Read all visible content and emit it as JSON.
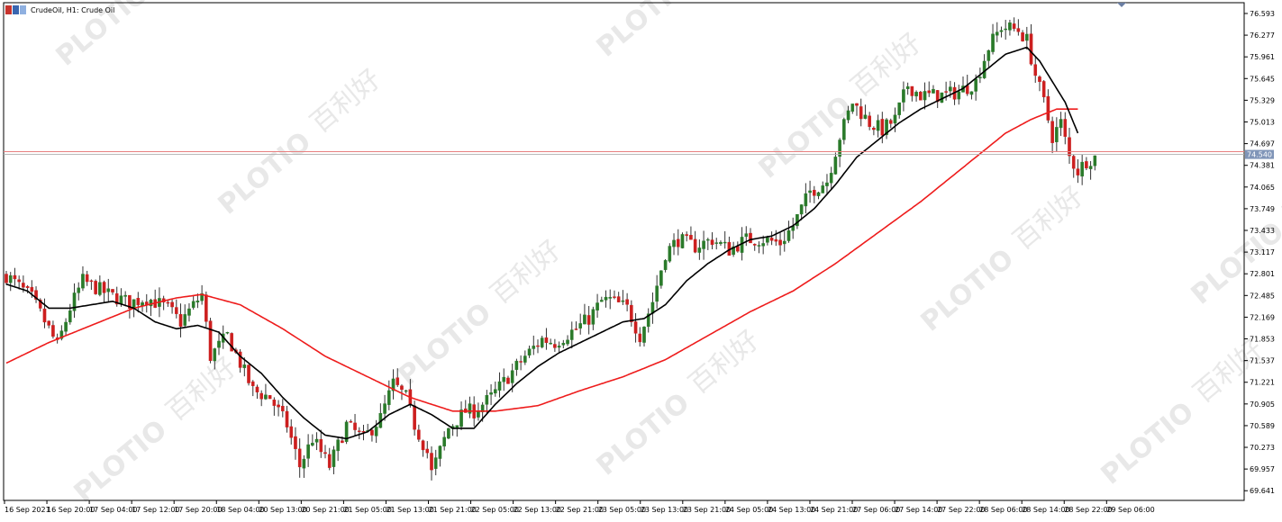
{
  "header": {
    "title": "CrudeOil, H1:  Crude Oil"
  },
  "colors": {
    "bull": "#2a7a2a",
    "bear": "#cc1f1f",
    "ma_fast": "#000000",
    "ma_slow": "#ee1c1c",
    "hline": "#e88080",
    "price_tag": "#8095b8",
    "watermark": "#e8e8e8"
  },
  "watermark": {
    "brand": "PLOTIO",
    "cn": "百利好"
  },
  "chart_data": {
    "type": "candlestick",
    "symbol": "CrudeOil",
    "timeframe": "H1",
    "title": "CrudeOil, H1:  Crude Oil",
    "ylim": [
      69.5,
      76.75
    ],
    "y_ticks": [
      "76.593",
      "76.277",
      "75.961",
      "75.645",
      "75.329",
      "75.013",
      "74.697",
      "74.381",
      "74.065",
      "73.749",
      "73.433",
      "73.117",
      "72.801",
      "72.485",
      "72.169",
      "71.853",
      "71.537",
      "71.221",
      "70.905",
      "70.589",
      "70.273",
      "69.957",
      "69.641"
    ],
    "x_ticks": [
      "16 Sep 2021",
      "16 Sep 20:00",
      "17 Sep 04:00",
      "17 Sep 12:00",
      "17 Sep 20:00",
      "18 Sep 04:00",
      "20 Sep 13:00",
      "20 Sep 21:00",
      "21 Sep 05:00",
      "21 Sep 13:00",
      "21 Sep 21:00",
      "22 Sep 05:00",
      "22 Sep 13:00",
      "22 Sep 21:00",
      "23 Sep 05:00",
      "23 Sep 13:00",
      "23 Sep 21:00",
      "24 Sep 05:00",
      "24 Sep 13:00",
      "24 Sep 21:00",
      "27 Sep 06:00",
      "27 Sep 14:00",
      "27 Sep 22:00",
      "28 Sep 06:00",
      "28 Sep 14:00",
      "28 Sep 22:00",
      "29 Sep 06:00"
    ],
    "current_price": "74.540",
    "hline_value": 74.58,
    "candles_control": [
      [
        0,
        72.78
      ],
      [
        6,
        72.45
      ],
      [
        10,
        72.0
      ],
      [
        12,
        71.75
      ],
      [
        15,
        72.3
      ],
      [
        18,
        72.7
      ],
      [
        24,
        72.5
      ],
      [
        29,
        72.38
      ],
      [
        33,
        72.45
      ],
      [
        38,
        72.3
      ],
      [
        41,
        72.1
      ],
      [
        46,
        72.5
      ],
      [
        48,
        71.6
      ],
      [
        52,
        71.9
      ],
      [
        55,
        71.5
      ],
      [
        58,
        71.1
      ],
      [
        62,
        71.0
      ],
      [
        66,
        70.6
      ],
      [
        69,
        70.0
      ],
      [
        72,
        70.4
      ],
      [
        76,
        70.0
      ],
      [
        80,
        70.6
      ],
      [
        84,
        70.4
      ],
      [
        88,
        70.7
      ],
      [
        91,
        71.2
      ],
      [
        94,
        71.0
      ],
      [
        96,
        70.6
      ],
      [
        99,
        70.2
      ],
      [
        100,
        69.9
      ],
      [
        104,
        70.55
      ],
      [
        108,
        70.8
      ],
      [
        110,
        70.8
      ],
      [
        114,
        71.0
      ],
      [
        118,
        71.3
      ],
      [
        122,
        71.6
      ],
      [
        126,
        71.85
      ],
      [
        129,
        71.8
      ],
      [
        134,
        72.0
      ],
      [
        137,
        72.15
      ],
      [
        140,
        72.4
      ],
      [
        142,
        72.42
      ],
      [
        146,
        72.3
      ],
      [
        149,
        71.9
      ],
      [
        152,
        72.4
      ],
      [
        155,
        73.1
      ],
      [
        158,
        73.3
      ],
      [
        162,
        73.2
      ],
      [
        166,
        73.3
      ],
      [
        170,
        73.15
      ],
      [
        174,
        73.3
      ],
      [
        178,
        73.3
      ],
      [
        182,
        73.25
      ],
      [
        185,
        73.5
      ],
      [
        189,
        74.0
      ],
      [
        193,
        74.15
      ],
      [
        196,
        74.8
      ],
      [
        199,
        75.3
      ],
      [
        203,
        75.0
      ],
      [
        206,
        74.9
      ],
      [
        209,
        75.05
      ],
      [
        212,
        75.55
      ],
      [
        215,
        75.4
      ],
      [
        220,
        75.4
      ],
      [
        224,
        75.45
      ],
      [
        228,
        75.6
      ],
      [
        231,
        76.1
      ],
      [
        234,
        76.4
      ],
      [
        238,
        76.35
      ],
      [
        240,
        76.2
      ],
      [
        242,
        75.7
      ],
      [
        244,
        75.3
      ],
      [
        246,
        74.8
      ],
      [
        248,
        75.0
      ],
      [
        250,
        74.5
      ],
      [
        252,
        74.3
      ],
      [
        254,
        74.45
      ],
      [
        256,
        74.5
      ]
    ],
    "ma_fast_control": [
      [
        0,
        72.65
      ],
      [
        5,
        72.55
      ],
      [
        10,
        72.3
      ],
      [
        15,
        72.3
      ],
      [
        20,
        72.35
      ],
      [
        25,
        72.4
      ],
      [
        30,
        72.3
      ],
      [
        35,
        72.1
      ],
      [
        40,
        72.0
      ],
      [
        45,
        72.05
      ],
      [
        50,
        71.95
      ],
      [
        55,
        71.6
      ],
      [
        60,
        71.35
      ],
      [
        65,
        71.0
      ],
      [
        70,
        70.7
      ],
      [
        75,
        70.45
      ],
      [
        80,
        70.4
      ],
      [
        85,
        70.5
      ],
      [
        90,
        70.75
      ],
      [
        95,
        70.9
      ],
      [
        100,
        70.75
      ],
      [
        105,
        70.55
      ],
      [
        110,
        70.55
      ],
      [
        115,
        70.9
      ],
      [
        120,
        71.2
      ],
      [
        125,
        71.45
      ],
      [
        130,
        71.65
      ],
      [
        135,
        71.8
      ],
      [
        140,
        71.95
      ],
      [
        145,
        72.1
      ],
      [
        150,
        72.15
      ],
      [
        155,
        72.35
      ],
      [
        160,
        72.7
      ],
      [
        165,
        72.95
      ],
      [
        170,
        73.15
      ],
      [
        175,
        73.3
      ],
      [
        180,
        73.35
      ],
      [
        185,
        73.5
      ],
      [
        190,
        73.75
      ],
      [
        195,
        74.1
      ],
      [
        200,
        74.5
      ],
      [
        205,
        74.75
      ],
      [
        210,
        75.0
      ],
      [
        215,
        75.2
      ],
      [
        220,
        75.35
      ],
      [
        225,
        75.5
      ],
      [
        230,
        75.75
      ],
      [
        235,
        76.0
      ],
      [
        240,
        76.1
      ],
      [
        243,
        75.9
      ],
      [
        246,
        75.6
      ],
      [
        249,
        75.3
      ],
      [
        252,
        74.85
      ]
    ],
    "ma_slow_control": [
      [
        0,
        71.5
      ],
      [
        10,
        71.8
      ],
      [
        20,
        72.05
      ],
      [
        30,
        72.3
      ],
      [
        40,
        72.45
      ],
      [
        46,
        72.5
      ],
      [
        55,
        72.35
      ],
      [
        65,
        72.0
      ],
      [
        75,
        71.6
      ],
      [
        85,
        71.3
      ],
      [
        95,
        71.0
      ],
      [
        105,
        70.8
      ],
      [
        115,
        70.8
      ],
      [
        125,
        70.88
      ],
      [
        135,
        71.1
      ],
      [
        145,
        71.3
      ],
      [
        155,
        71.55
      ],
      [
        165,
        71.9
      ],
      [
        175,
        72.25
      ],
      [
        185,
        72.55
      ],
      [
        195,
        72.95
      ],
      [
        205,
        73.4
      ],
      [
        215,
        73.85
      ],
      [
        225,
        74.35
      ],
      [
        235,
        74.85
      ],
      [
        241,
        75.05
      ],
      [
        247,
        75.2
      ],
      [
        252,
        75.2
      ]
    ]
  }
}
